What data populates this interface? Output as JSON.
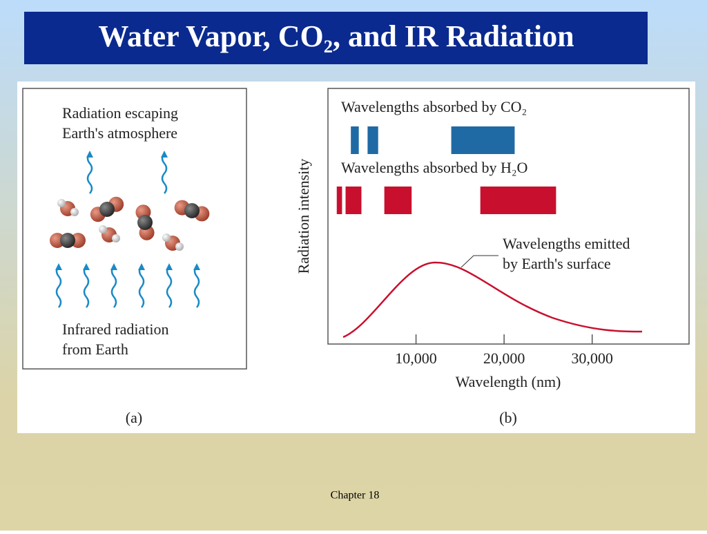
{
  "title": "Water Vapor, CO₂, and IR Radiation",
  "panel_a": {
    "top_label": [
      "Radiation escaping",
      "Earth's atmosphere"
    ],
    "bottom_label": [
      "Infrared radiation",
      "from Earth"
    ],
    "caption": "(a)"
  },
  "chart_data": {
    "type": "band",
    "y_label": "Radiation intensity",
    "x_label": "Wavelength (nm)",
    "caption": "(b)",
    "xlim": [
      0,
      41000
    ],
    "xticks": [
      {
        "value": 10000,
        "label": "10,000"
      },
      {
        "value": 20000,
        "label": "20,000"
      },
      {
        "value": 30000,
        "label": "30,000"
      }
    ],
    "series": [
      {
        "name": "Wavelengths absorbed by CO₂",
        "color": "#1f6aa5",
        "bands": [
          [
            2600,
            3500
          ],
          [
            4500,
            5700
          ],
          [
            14000,
            21200
          ]
        ]
      },
      {
        "name": "Wavelengths absorbed by H₂O",
        "color": "#c8102e",
        "bands": [
          [
            1000,
            1600
          ],
          [
            2000,
            3800
          ],
          [
            6400,
            9500
          ],
          [
            17300,
            25900
          ]
        ]
      }
    ],
    "annotation": [
      "Wavelengths emitted",
      "by Earth's surface"
    ]
  },
  "footer": "Chapter 18"
}
